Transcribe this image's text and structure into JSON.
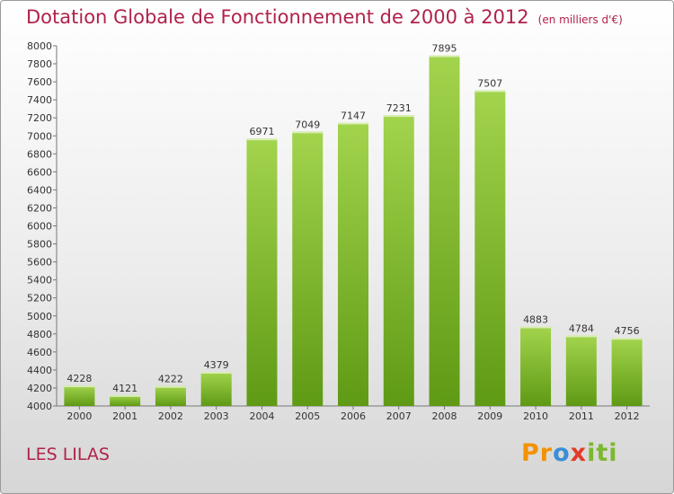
{
  "title": "Dotation Globale de Fonctionnement de 2000 à 2012",
  "unit": "(en milliers d'€)",
  "commune": "LES LILAS",
  "logo": {
    "parts": [
      "Pr",
      "o",
      "x",
      "iti"
    ]
  },
  "colors": {
    "title": "#b0224a",
    "bar_light": "#a3d44d",
    "bar_dark": "#5f9a14"
  },
  "chart_data": {
    "type": "bar",
    "categories": [
      "2000",
      "2001",
      "2002",
      "2003",
      "2004",
      "2005",
      "2006",
      "2007",
      "2008",
      "2009",
      "2010",
      "2011",
      "2012"
    ],
    "values": [
      4228,
      4121,
      4222,
      4379,
      6971,
      7049,
      7147,
      7231,
      7895,
      7507,
      4883,
      4784,
      4756
    ],
    "ylim": [
      4000,
      8000
    ],
    "yticks": [
      4000,
      4200,
      4400,
      4600,
      4800,
      5000,
      5200,
      5400,
      5600,
      5800,
      6000,
      6200,
      6400,
      6600,
      6800,
      7000,
      7200,
      7400,
      7600,
      7800,
      8000
    ],
    "grid": false
  }
}
